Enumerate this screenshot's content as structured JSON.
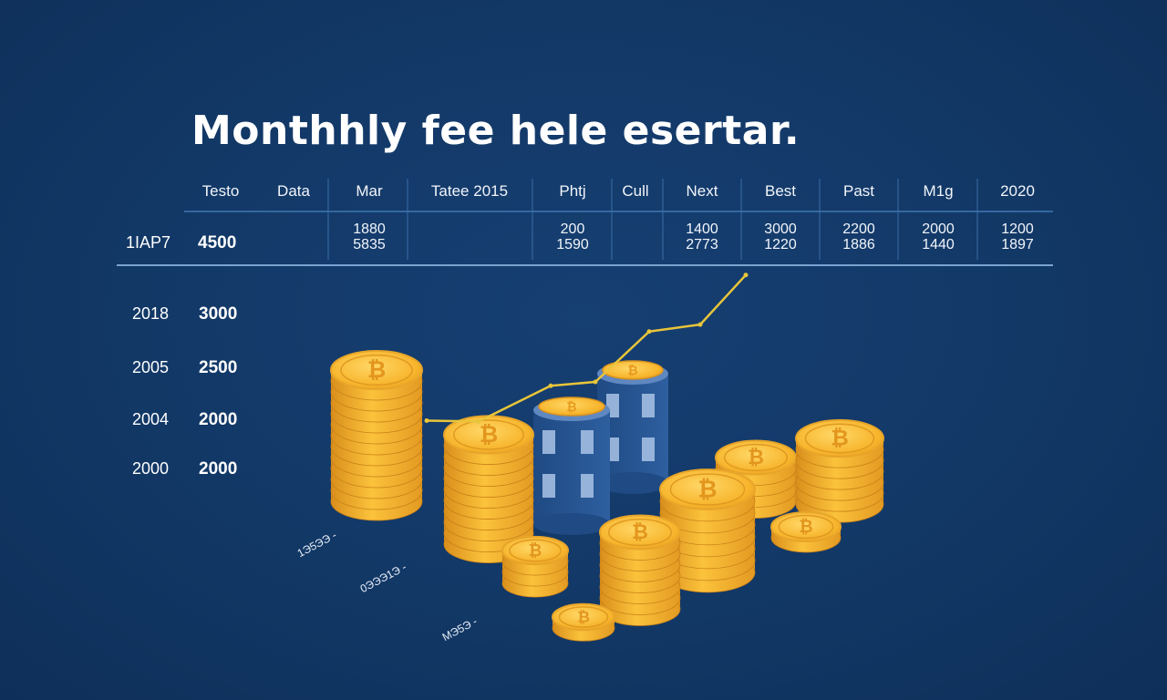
{
  "title": "Monthhly fee hele esertar.",
  "table": {
    "headers": [
      "Testo",
      "Data",
      "Mar",
      "Tatee 2015",
      "Phtj",
      "Cull",
      "Next",
      "Best",
      "Past",
      "M1g",
      "2020"
    ],
    "first_row": {
      "label": "1IAP7",
      "value": "4500"
    },
    "cells": [
      {
        "col": "Mar",
        "line1": "1880",
        "line2": "5835"
      },
      {
        "col": "Phtj",
        "line1": "200",
        "line2": "1590"
      },
      {
        "col": "Next",
        "line1": "1400",
        "line2": "2773"
      },
      {
        "col": "Best",
        "line1": "3000",
        "line2": "1220"
      },
      {
        "col": "Past",
        "line1": "2200",
        "line2": "1886"
      },
      {
        "col": "M1g",
        "line1": "2000",
        "line2": "1440"
      },
      {
        "col": "2020",
        "line1": "1200",
        "line2": "1897"
      }
    ]
  },
  "rows": [
    {
      "label": "2018",
      "value": "3000"
    },
    {
      "label": "2005",
      "value": "2500"
    },
    {
      "label": "2004",
      "value": "2000"
    },
    {
      "label": "2000",
      "value": "2000"
    }
  ],
  "axis_labels": [
    "1Э5ЭЭ -",
    "0ЭЭЭ1Э -",
    "MЭ5Э -"
  ],
  "chart_data": {
    "type": "line",
    "title": "Monthhly fee hele esertar.",
    "series": [
      {
        "values": [
          1200,
          1190,
          1650,
          1700,
          2350,
          2440,
          3080
        ]
      }
    ],
    "ylim": [
      0,
      3100
    ],
    "grid": false,
    "legend": "none",
    "line_color": "#e8c53a"
  },
  "colors": {
    "background": "#123866",
    "coin_gold": "#f5b731",
    "coin_dark": "#c9821a",
    "building": "#2b5a9a",
    "line": "#e8c53a",
    "rule": "#4d7fb8"
  }
}
